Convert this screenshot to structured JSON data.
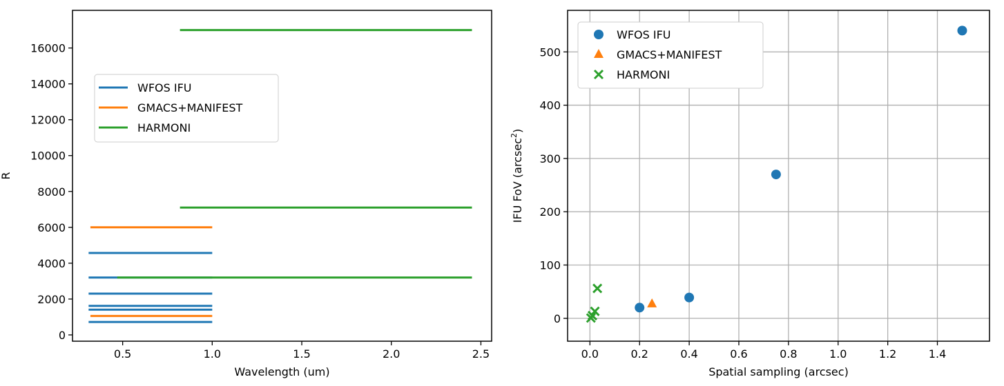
{
  "chart_data": [
    {
      "type": "line",
      "xlabel": "Wavelength (um)",
      "ylabel": "R",
      "xlim": [
        0.22,
        2.56
      ],
      "ylim": [
        -350,
        18100
      ],
      "xticks": [
        0.5,
        1.0,
        1.5,
        2.0,
        2.5
      ],
      "xtick_labels": [
        "0.5",
        "1.0",
        "1.5",
        "2.0",
        "2.5"
      ],
      "yticks": [
        0,
        2000,
        4000,
        6000,
        8000,
        10000,
        12000,
        14000,
        16000
      ],
      "ytick_labels": [
        "0",
        "2000",
        "4000",
        "6000",
        "8000",
        "10000",
        "12000",
        "14000",
        "16000"
      ],
      "grid": false,
      "legend_placement": "upper-left",
      "series": [
        {
          "name": "WFOS IFU",
          "color": "#1f77b4",
          "segments": [
            [
              0.31,
              1.0,
              4570
            ],
            [
              0.31,
              1.0,
              3200
            ],
            [
              0.31,
              1.0,
              2300
            ],
            [
              0.31,
              1.0,
              1620
            ],
            [
              0.31,
              1.0,
              1410
            ],
            [
              0.31,
              1.0,
              720
            ]
          ]
        },
        {
          "name": "GMACS+MANIFEST",
          "color": "#ff7f0e",
          "segments": [
            [
              0.32,
              1.0,
              6000
            ],
            [
              0.32,
              1.0,
              1060
            ]
          ]
        },
        {
          "name": "HARMONI",
          "color": "#2ca02c",
          "segments": [
            [
              0.82,
              2.45,
              17000
            ],
            [
              0.82,
              2.45,
              7100
            ],
            [
              0.47,
              2.45,
              3200
            ]
          ]
        }
      ]
    },
    {
      "type": "scatter",
      "xlabel": "Spatial sampling (arcsec)",
      "ylabel": "IFU FoV (arcsec",
      "ylabel_sup": "2",
      "ylabel_end": ")",
      "xlim": [
        -0.09,
        1.61
      ],
      "ylim": [
        -43,
        578
      ],
      "xticks": [
        0.0,
        0.2,
        0.4,
        0.6,
        0.8,
        1.0,
        1.2,
        1.4
      ],
      "xtick_labels": [
        "0.0",
        "0.2",
        "0.4",
        "0.6",
        "0.8",
        "1.0",
        "1.2",
        "1.4"
      ],
      "yticks": [
        0,
        100,
        200,
        300,
        400,
        500
      ],
      "ytick_labels": [
        "0",
        "100",
        "200",
        "300",
        "400",
        "500"
      ],
      "grid": true,
      "legend_placement": "upper-left",
      "series": [
        {
          "name": "WFOS IFU",
          "color": "#1f77b4",
          "marker": "circle",
          "points": [
            [
              0.2,
              20
            ],
            [
              0.4,
              39
            ],
            [
              0.75,
              270
            ],
            [
              1.5,
              540
            ]
          ]
        },
        {
          "name": "GMACS+MANIFEST",
          "color": "#ff7f0e",
          "marker": "triangle",
          "points": [
            [
              0.25,
              27
            ]
          ]
        },
        {
          "name": "HARMONI",
          "color": "#2ca02c",
          "marker": "x",
          "points": [
            [
              0.004,
              0.5
            ],
            [
              0.01,
              5
            ],
            [
              0.02,
              13
            ],
            [
              0.03,
              56
            ]
          ]
        }
      ]
    }
  ]
}
